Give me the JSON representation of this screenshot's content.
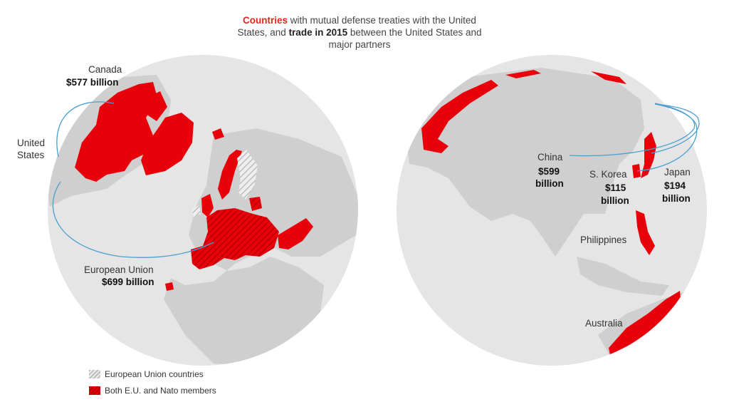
{
  "title": {
    "highlight": "Countries",
    "part1": " with mutual defense treaties with the United States, and ",
    "bold": "trade in 2015",
    "part2": " between the United States and major partners"
  },
  "labels": {
    "canada": {
      "name": "Canada",
      "value": "$577 billion"
    },
    "united_states": {
      "line1": "United",
      "line2": "States"
    },
    "eu": {
      "name": "European Union",
      "value": "$699 billion"
    },
    "china": {
      "name": "China",
      "value1": "$599",
      "value2": "billion"
    },
    "south_korea": {
      "name": "S. Korea",
      "value1": "$115",
      "value2": "billion"
    },
    "japan": {
      "name": "Japan",
      "value1": "$194",
      "value2": "billion"
    },
    "philippines": {
      "name": "Philippines"
    },
    "australia": {
      "name": "Australia"
    }
  },
  "legend": {
    "eu_countries": "European Union countries",
    "both": "Both E.U. and Nato members"
  },
  "colors": {
    "globe": "#e5e5e5",
    "land": "#cfcfcf",
    "treaty_red": "#e8000b",
    "flow_line": "#4a9fd0"
  }
}
